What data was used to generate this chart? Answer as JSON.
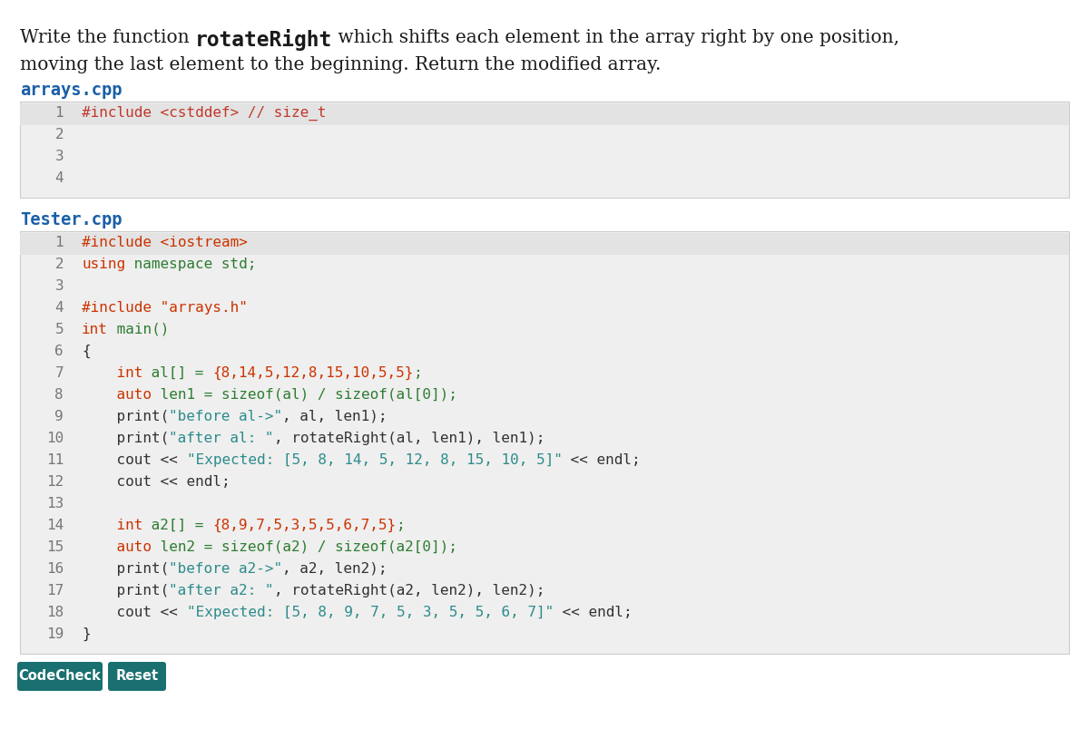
{
  "bg_color": "#ffffff",
  "description_normal_color": "#1a1a1a",
  "section_label_color": "#1a5fa8",
  "code_bg_color": "#efefef",
  "code_highlight_color": "#e3e3e3",
  "line_number_color": "#777777",
  "arrays_cpp_lines": [
    {
      "num": "1",
      "tokens": [
        {
          "text": "#include <cstddef> // size_t",
          "color": "#c0392b"
        }
      ]
    },
    {
      "num": "2",
      "tokens": []
    },
    {
      "num": "3",
      "tokens": []
    },
    {
      "num": "4",
      "tokens": []
    }
  ],
  "tester_cpp_lines": [
    {
      "num": "1",
      "tokens": [
        {
          "text": "#include <iostream>",
          "color": "#cc3300"
        }
      ]
    },
    {
      "num": "2",
      "tokens": [
        {
          "text": "using",
          "color": "#cc3300"
        },
        {
          "text": " namespace std;",
          "color": "#2e7d32"
        }
      ]
    },
    {
      "num": "3",
      "tokens": []
    },
    {
      "num": "4",
      "tokens": [
        {
          "text": "#include \"arrays.h\"",
          "color": "#cc3300"
        }
      ]
    },
    {
      "num": "5",
      "tokens": [
        {
          "text": "int",
          "color": "#cc3300"
        },
        {
          "text": " main()",
          "color": "#2e7d32"
        }
      ]
    },
    {
      "num": "6",
      "tokens": [
        {
          "text": "{",
          "color": "#333333"
        }
      ]
    },
    {
      "num": "7",
      "tokens": [
        {
          "text": "    int",
          "color": "#cc3300"
        },
        {
          "text": " al[] = ",
          "color": "#2e7d32"
        },
        {
          "text": "{8,14,5,12,8,15,10,5,5}",
          "color": "#cc3300"
        },
        {
          "text": ";",
          "color": "#2e7d32"
        }
      ]
    },
    {
      "num": "8",
      "tokens": [
        {
          "text": "    auto",
          "color": "#cc3300"
        },
        {
          "text": " len1 = sizeof(al) / sizeof(al[0]);",
          "color": "#2e7d32"
        }
      ]
    },
    {
      "num": "9",
      "tokens": [
        {
          "text": "    print(",
          "color": "#333333"
        },
        {
          "text": "\"before al->\"",
          "color": "#2e8b8b"
        },
        {
          "text": ", al, len1);",
          "color": "#333333"
        }
      ]
    },
    {
      "num": "10",
      "tokens": [
        {
          "text": "    print(",
          "color": "#333333"
        },
        {
          "text": "\"after al: \"",
          "color": "#2e8b8b"
        },
        {
          "text": ", rotateRight(al, len1), len1);",
          "color": "#333333"
        }
      ]
    },
    {
      "num": "11",
      "tokens": [
        {
          "text": "    cout << ",
          "color": "#333333"
        },
        {
          "text": "\"Expected: [5, 8, 14, 5, 12, 8, 15, 10, 5]\"",
          "color": "#2e8b8b"
        },
        {
          "text": " << endl;",
          "color": "#333333"
        }
      ]
    },
    {
      "num": "12",
      "tokens": [
        {
          "text": "    cout << endl;",
          "color": "#333333"
        }
      ]
    },
    {
      "num": "13",
      "tokens": []
    },
    {
      "num": "14",
      "tokens": [
        {
          "text": "    int",
          "color": "#cc3300"
        },
        {
          "text": " a2[] = ",
          "color": "#2e7d32"
        },
        {
          "text": "{8,9,7,5,3,5,5,6,7,5}",
          "color": "#cc3300"
        },
        {
          "text": ";",
          "color": "#2e7d32"
        }
      ]
    },
    {
      "num": "15",
      "tokens": [
        {
          "text": "    auto",
          "color": "#cc3300"
        },
        {
          "text": " len2 = sizeof(a2) / sizeof(a2[0]);",
          "color": "#2e7d32"
        }
      ]
    },
    {
      "num": "16",
      "tokens": [
        {
          "text": "    print(",
          "color": "#333333"
        },
        {
          "text": "\"before a2->\"",
          "color": "#2e8b8b"
        },
        {
          "text": ", a2, len2);",
          "color": "#333333"
        }
      ]
    },
    {
      "num": "17",
      "tokens": [
        {
          "text": "    print(",
          "color": "#333333"
        },
        {
          "text": "\"after a2: \"",
          "color": "#2e8b8b"
        },
        {
          "text": ", rotateRight(a2, len2), len2);",
          "color": "#333333"
        }
      ]
    },
    {
      "num": "18",
      "tokens": [
        {
          "text": "    cout << ",
          "color": "#333333"
        },
        {
          "text": "\"Expected: [5, 8, 9, 7, 5, 3, 5, 5, 6, 7]\"",
          "color": "#2e8b8b"
        },
        {
          "text": " << endl;",
          "color": "#333333"
        }
      ]
    },
    {
      "num": "19",
      "tokens": [
        {
          "text": "}",
          "color": "#333333"
        }
      ]
    }
  ],
  "button_color": "#1a7070",
  "button_text_color": "#ffffff",
  "button_codecheck_label": "CodeCheck",
  "button_reset_label": "Reset"
}
